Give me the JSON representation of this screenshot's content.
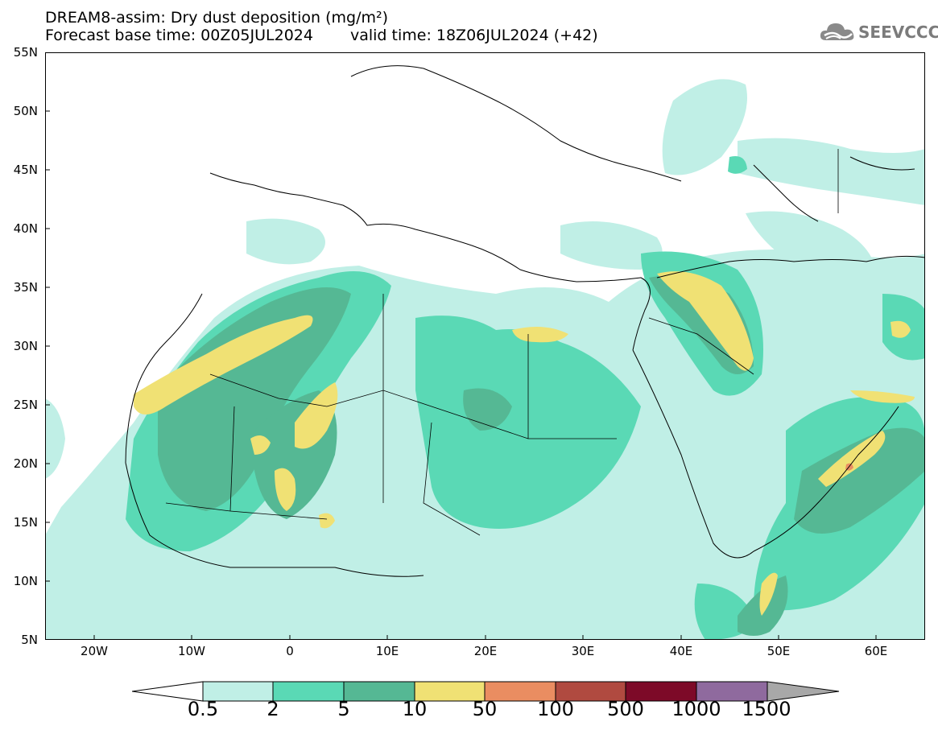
{
  "header": {
    "title": "DREAM8-assim: Dry dust deposition (mg/m²)",
    "base_time": "Forecast base time: 00Z05JUL2024",
    "valid_time": "valid time: 18Z06JUL2024 (+42)",
    "logo_text": "SEEVCCC"
  },
  "map": {
    "lat_labels": [
      "55N",
      "50N",
      "45N",
      "40N",
      "35N",
      "30N",
      "25N",
      "20N",
      "15N",
      "10N",
      "5N"
    ],
    "lon_labels": [
      "20W",
      "10W",
      "0",
      "10E",
      "20E",
      "30E",
      "40E",
      "50E",
      "60E"
    ],
    "lon_range": [
      -25,
      65
    ],
    "lat_range": [
      5,
      55
    ]
  },
  "colorbar": {
    "labels": [
      "0.5",
      "2",
      "5",
      "10",
      "50",
      "100",
      "500",
      "1000",
      "1500"
    ],
    "colors": [
      "#c0efe6",
      "#5ad9b5",
      "#55b894",
      "#f0e174",
      "#ea8d61",
      "#b04a40",
      "#7d0a28",
      "#8f6a9e",
      "#a8a8a8"
    ]
  }
}
